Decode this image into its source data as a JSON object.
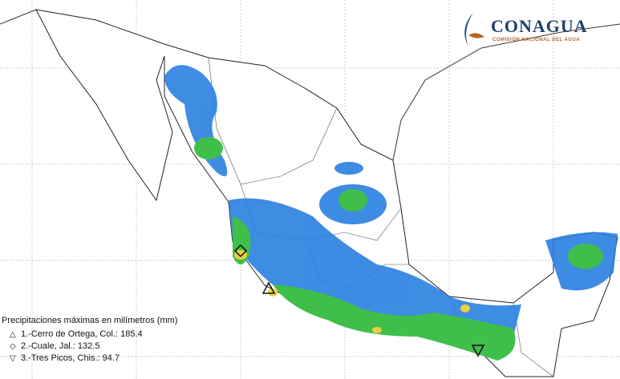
{
  "logo": {
    "name": "CONAGUA",
    "subtitle": "COMISIÓN NACIONAL DEL AGUA"
  },
  "legend": {
    "title": "Precipitaciones máximas en milímetros (mm)",
    "items": [
      "1.-Cerro de Ortega, Col.: 185.4",
      "2.-Cuale, Jal.: 132.5",
      "3.-Tres Picos, Chis.: 94.7"
    ]
  }
}
